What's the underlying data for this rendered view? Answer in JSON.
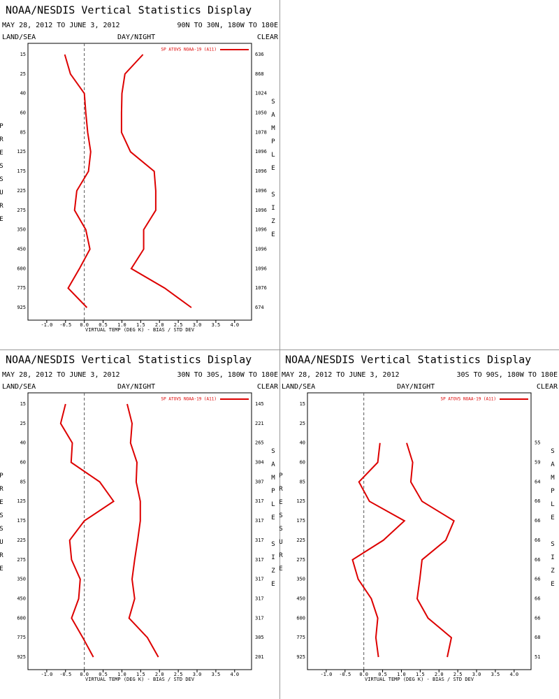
{
  "chart_data": [
    {
      "type": "line",
      "title": "NOAA/NESDIS Vertical Statistics Display",
      "subtitle": "MAY 28, 2012 TO JUNE 3, 2012",
      "region": "90N TO 30N, 180W TO 180E",
      "land_sea": "LAND/SEA",
      "day_night": "DAY/NIGHT",
      "clear": "CLEAR",
      "legend": "SP ATOVS NOAA-19 (A11)",
      "y_label": "PRESSURE",
      "y2_label": "SAMPLE SIZE",
      "x_label": "VIRTUAL TEMP (DEG K) - BIAS / STD DEV",
      "categories": [
        "15",
        "25",
        "40",
        "60",
        "85",
        "125",
        "175",
        "225",
        "275",
        "350",
        "450",
        "600",
        "775",
        "925"
      ],
      "sample_sizes": [
        636,
        868,
        1024,
        1050,
        1078,
        1096,
        1096,
        1096,
        1096,
        1096,
        1096,
        1096,
        1076,
        674
      ],
      "series": [
        {
          "color": "#dd0000",
          "values": [
            -0.52,
            -0.37,
            0.0,
            0.04,
            0.09,
            0.17,
            0.11,
            -0.2,
            -0.26,
            0.04,
            0.15,
            -0.13,
            -0.43,
            0.07
          ]
        },
        {
          "color": "#dd0000",
          "values": [
            1.56,
            1.08,
            1.0,
            0.99,
            0.99,
            1.23,
            1.86,
            1.9,
            1.9,
            1.58,
            1.58,
            1.25,
            2.14,
            2.85
          ]
        }
      ],
      "xlim": [
        -1.5,
        4.45
      ],
      "xticks": [
        {
          "value": -1,
          "label": "-1.0"
        },
        -0.5,
        {
          "value": 0,
          "label": "0.0"
        },
        0.5,
        {
          "value": 1,
          "label": "1.0"
        },
        1.5,
        {
          "value": 2,
          "label": "2.0"
        },
        2.5,
        {
          "value": 3,
          "label": "3.0"
        },
        3.5,
        {
          "value": 4,
          "label": "4.0"
        }
      ]
    },
    {
      "type": "line",
      "title": "NOAA/NESDIS Vertical Statistics Display",
      "subtitle": "MAY 28, 2012 TO JUNE 3, 2012",
      "region": "30N TO 30S, 180W TO 180E",
      "land_sea": "LAND/SEA",
      "day_night": "DAY/NIGHT",
      "clear": "CLEAR",
      "legend": "SP ATOVS NOAA-19 (A11)",
      "y_label": "PRESSURE",
      "y2_label": "SAMPLE SIZE",
      "x_label": "VIRTUAL TEMP (DEG K) - BIAS / STD DEV",
      "categories": [
        "15",
        "25",
        "40",
        "60",
        "85",
        "125",
        "175",
        "225",
        "275",
        "350",
        "450",
        "600",
        "775",
        "925"
      ],
      "sample_sizes": [
        145,
        221,
        265,
        304,
        307,
        317,
        317,
        317,
        317,
        317,
        317,
        317,
        305,
        201
      ],
      "series": [
        {
          "color": "#dd0000",
          "values": [
            -0.5,
            -0.63,
            -0.32,
            -0.35,
            0.41,
            0.78,
            0.0,
            -0.39,
            -0.34,
            -0.11,
            -0.15,
            -0.34,
            -0.04,
            0.24
          ]
        },
        {
          "color": "#dd0000",
          "values": [
            1.14,
            1.27,
            1.23,
            1.4,
            1.38,
            1.49,
            1.49,
            1.42,
            1.34,
            1.27,
            1.34,
            1.19,
            1.68,
            1.97
          ]
        }
      ],
      "xlim": [
        -1.5,
        4.45
      ],
      "xticks": [
        {
          "value": -1,
          "label": "-1.0"
        },
        -0.5,
        {
          "value": 0,
          "label": "0.0"
        },
        0.5,
        {
          "value": 1,
          "label": "1.0"
        },
        1.5,
        {
          "value": 2,
          "label": "2.0"
        },
        2.5,
        {
          "value": 3,
          "label": "3.0"
        },
        3.5,
        {
          "value": 4,
          "label": "4.0"
        }
      ]
    },
    {
      "type": "line",
      "title": "NOAA/NESDIS Vertical Statistics Display",
      "subtitle": "MAY 28, 2012 TO JUNE 3, 2012",
      "region": "30S TO 90S, 180W TO 180E",
      "land_sea": "LAND/SEA",
      "day_night": "DAY/NIGHT",
      "clear": "CLEAR",
      "legend": "SP ATOVS NOAA-19 (A11)",
      "y_label": "PRESSURE",
      "y2_label": "SAMPLE SIZE",
      "x_label": "VIRTUAL TEMP (DEG K) - BIAS / STD DEV",
      "categories": [
        "15",
        "25",
        "40",
        "60",
        "85",
        "125",
        "175",
        "225",
        "275",
        "350",
        "450",
        "600",
        "775",
        "925"
      ],
      "sample_sizes": [
        null,
        null,
        55,
        59,
        64,
        66,
        66,
        66,
        66,
        66,
        66,
        66,
        68,
        51
      ],
      "series": [
        {
          "color": "#dd0000",
          "values": [
            null,
            null,
            0.43,
            0.37,
            -0.13,
            0.15,
            1.08,
            0.52,
            -0.3,
            -0.15,
            0.2,
            0.37,
            0.32,
            0.39
          ]
        },
        {
          "color": "#dd0000",
          "values": [
            null,
            null,
            1.14,
            1.3,
            1.25,
            1.55,
            2.4,
            2.18,
            1.55,
            1.49,
            1.42,
            1.71,
            2.33,
            2.22
          ]
        }
      ],
      "xlim": [
        -1.5,
        4.45
      ],
      "xticks": [
        {
          "value": -1,
          "label": "-1.0"
        },
        -0.5,
        {
          "value": 0,
          "label": "0.0"
        },
        0.5,
        {
          "value": 1,
          "label": "1.0"
        },
        1.5,
        {
          "value": 2,
          "label": "2.0"
        },
        2.5,
        {
          "value": 3,
          "label": "3.0"
        },
        3.5,
        {
          "value": 4,
          "label": "4.0"
        }
      ]
    }
  ]
}
